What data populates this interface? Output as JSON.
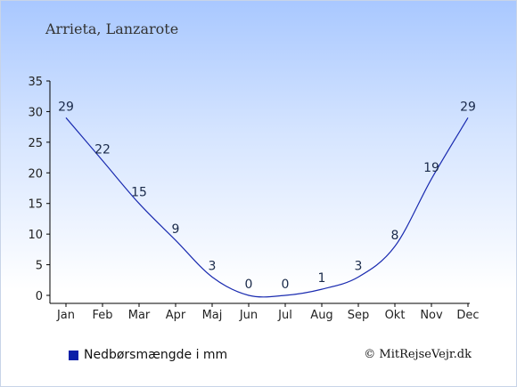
{
  "header": {
    "title": "Arrieta, Lanzarote"
  },
  "legend": {
    "label": "Nedbørsmængde i mm",
    "color": "#0b1fa8"
  },
  "credit": {
    "text": "© MitRejseVejr.dk"
  },
  "chart_data": {
    "type": "line",
    "title": "Arrieta, Lanzarote",
    "xlabel": "",
    "ylabel": "",
    "categories": [
      "Jan",
      "Feb",
      "Mar",
      "Apr",
      "Maj",
      "Jun",
      "Jul",
      "Aug",
      "Sep",
      "Okt",
      "Nov",
      "Dec"
    ],
    "series": [
      {
        "name": "Nedbørsmængde i mm",
        "values": [
          29,
          22,
          15,
          9,
          3,
          0,
          0,
          1,
          3,
          8,
          19,
          29
        ],
        "color": "#1a2bb0"
      }
    ],
    "ylim": [
      0,
      35
    ],
    "yticks": [
      0,
      5,
      10,
      15,
      20,
      25,
      30,
      35
    ],
    "grid": false,
    "legend_position": "bottom-left"
  }
}
